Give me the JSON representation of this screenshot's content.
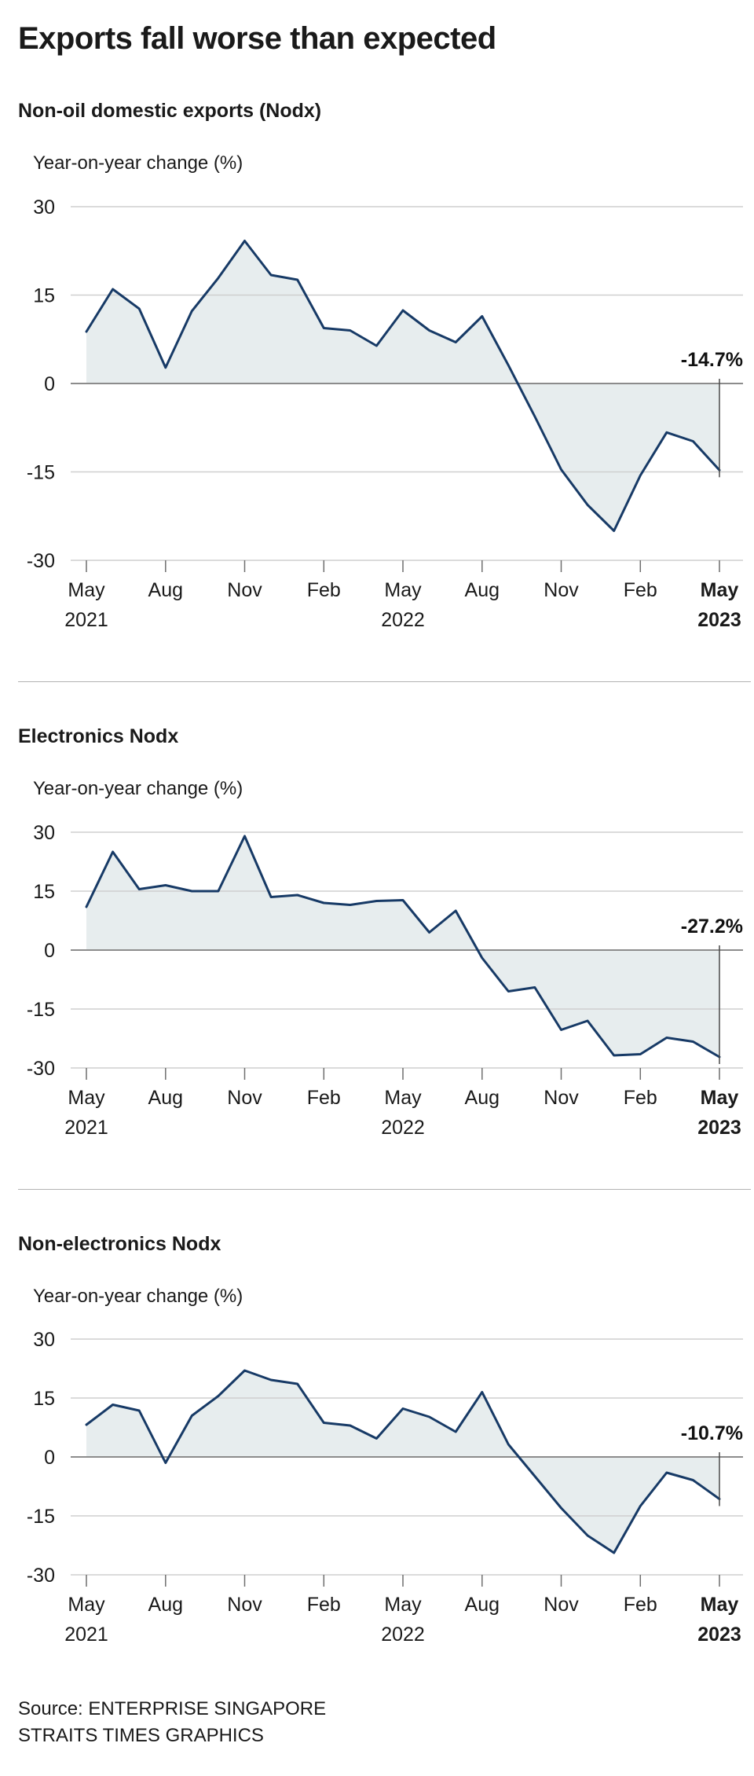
{
  "page": {
    "title": "Exports fall worse than expected",
    "source_line1": "Source: ENTERPRISE SINGAPORE",
    "source_line2": "STRAITS TIMES GRAPHICS"
  },
  "colors": {
    "line": "#173a66",
    "area": "#e7edee",
    "grid": "#cfcfcf",
    "zero_line": "#8c8c8c",
    "tick": "#6e6e6e",
    "marker": "#4a4a4a",
    "text": "#1a1a1a",
    "separator": "#b3b3b3"
  },
  "chart_data": [
    {
      "type": "area",
      "title": "Non-oil domestic exports (Nodx)",
      "ylabel": "Year-on-year change (%)",
      "ylim": [
        -30,
        30
      ],
      "yticks": [
        30,
        15,
        0,
        -15,
        -30
      ],
      "last_label": "-14.7%",
      "x": [
        "May 2021",
        "Jun 2021",
        "Jul 2021",
        "Aug 2021",
        "Sep 2021",
        "Oct 2021",
        "Nov 2021",
        "Dec 2021",
        "Jan 2022",
        "Feb 2022",
        "Mar 2022",
        "Apr 2022",
        "May 2022",
        "Jun 2022",
        "Jul 2022",
        "Aug 2022",
        "Sep 2022",
        "Oct 2022",
        "Nov 2022",
        "Dec 2022",
        "Jan 2023",
        "Feb 2023",
        "Mar 2023",
        "Apr 2023",
        "May 2023"
      ],
      "values": [
        8.8,
        16.0,
        12.7,
        2.7,
        12.3,
        17.9,
        24.2,
        18.4,
        17.6,
        9.4,
        9.0,
        6.4,
        12.4,
        9.0,
        7.0,
        11.4,
        3.1,
        -5.6,
        -14.6,
        -20.6,
        -25.0,
        -15.6,
        -8.3,
        -9.8,
        -14.7
      ],
      "xticks": [
        {
          "index": 0,
          "lines": [
            "May",
            "2021"
          ]
        },
        {
          "index": 3,
          "lines": [
            "Aug"
          ]
        },
        {
          "index": 6,
          "lines": [
            "Nov"
          ]
        },
        {
          "index": 9,
          "lines": [
            "Feb"
          ]
        },
        {
          "index": 12,
          "lines": [
            "May",
            "2022"
          ]
        },
        {
          "index": 15,
          "lines": [
            "Aug"
          ]
        },
        {
          "index": 18,
          "lines": [
            "Nov"
          ]
        },
        {
          "index": 21,
          "lines": [
            "Feb"
          ]
        },
        {
          "index": 24,
          "lines": [
            "May",
            "2023"
          ],
          "bold": true
        }
      ]
    },
    {
      "type": "area",
      "title": "Electronics Nodx",
      "ylabel": "Year-on-year change (%)",
      "ylim": [
        -30,
        30
      ],
      "yticks": [
        30,
        15,
        0,
        -15,
        -30
      ],
      "last_label": "-27.2%",
      "x": [
        "May 2021",
        "Jun 2021",
        "Jul 2021",
        "Aug 2021",
        "Sep 2021",
        "Oct 2021",
        "Nov 2021",
        "Dec 2021",
        "Jan 2022",
        "Feb 2022",
        "Mar 2022",
        "Apr 2022",
        "May 2022",
        "Jun 2022",
        "Jul 2022",
        "Aug 2022",
        "Sep 2022",
        "Oct 2022",
        "Nov 2022",
        "Dec 2022",
        "Jan 2023",
        "Feb 2023",
        "Mar 2023",
        "Apr 2023",
        "May 2023"
      ],
      "values": [
        11.0,
        25.0,
        15.5,
        16.5,
        15.0,
        15.0,
        29.0,
        13.5,
        14.0,
        12.0,
        11.5,
        12.5,
        12.7,
        4.5,
        10.0,
        -2.0,
        -10.5,
        -9.5,
        -20.3,
        -18.0,
        -26.8,
        -26.5,
        -22.3,
        -23.3,
        -27.2
      ],
      "xticks": [
        {
          "index": 0,
          "lines": [
            "May",
            "2021"
          ]
        },
        {
          "index": 3,
          "lines": [
            "Aug"
          ]
        },
        {
          "index": 6,
          "lines": [
            "Nov"
          ]
        },
        {
          "index": 9,
          "lines": [
            "Feb"
          ]
        },
        {
          "index": 12,
          "lines": [
            "May",
            "2022"
          ]
        },
        {
          "index": 15,
          "lines": [
            "Aug"
          ]
        },
        {
          "index": 18,
          "lines": [
            "Nov"
          ]
        },
        {
          "index": 21,
          "lines": [
            "Feb"
          ]
        },
        {
          "index": 24,
          "lines": [
            "May",
            "2023"
          ],
          "bold": true
        }
      ]
    },
    {
      "type": "area",
      "title": "Non-electronics Nodx",
      "ylabel": "Year-on-year change (%)",
      "ylim": [
        -30,
        30
      ],
      "yticks": [
        30,
        15,
        0,
        -15,
        -30
      ],
      "last_label": "-10.7%",
      "x": [
        "May 2021",
        "Jun 2021",
        "Jul 2021",
        "Aug 2021",
        "Sep 2021",
        "Oct 2021",
        "Nov 2021",
        "Dec 2021",
        "Jan 2022",
        "Feb 2022",
        "Mar 2022",
        "Apr 2022",
        "May 2022",
        "Jun 2022",
        "Jul 2022",
        "Aug 2022",
        "Sep 2022",
        "Oct 2022",
        "Nov 2022",
        "Dec 2022",
        "Jan 2023",
        "Feb 2023",
        "Mar 2023",
        "Apr 2023",
        "May 2023"
      ],
      "values": [
        8.2,
        13.3,
        11.8,
        -1.5,
        10.5,
        15.5,
        22.0,
        19.6,
        18.6,
        8.7,
        8.0,
        4.7,
        12.3,
        10.2,
        6.4,
        16.5,
        3.2,
        -4.9,
        -13.0,
        -20.0,
        -24.4,
        -12.5,
        -4.0,
        -5.9,
        -10.7
      ],
      "xticks": [
        {
          "index": 0,
          "lines": [
            "May",
            "2021"
          ]
        },
        {
          "index": 3,
          "lines": [
            "Aug"
          ]
        },
        {
          "index": 6,
          "lines": [
            "Nov"
          ]
        },
        {
          "index": 9,
          "lines": [
            "Feb"
          ]
        },
        {
          "index": 12,
          "lines": [
            "May",
            "2022"
          ]
        },
        {
          "index": 15,
          "lines": [
            "Aug"
          ]
        },
        {
          "index": 18,
          "lines": [
            "Nov"
          ]
        },
        {
          "index": 21,
          "lines": [
            "Feb"
          ]
        },
        {
          "index": 24,
          "lines": [
            "May",
            "2023"
          ],
          "bold": true
        }
      ]
    }
  ]
}
